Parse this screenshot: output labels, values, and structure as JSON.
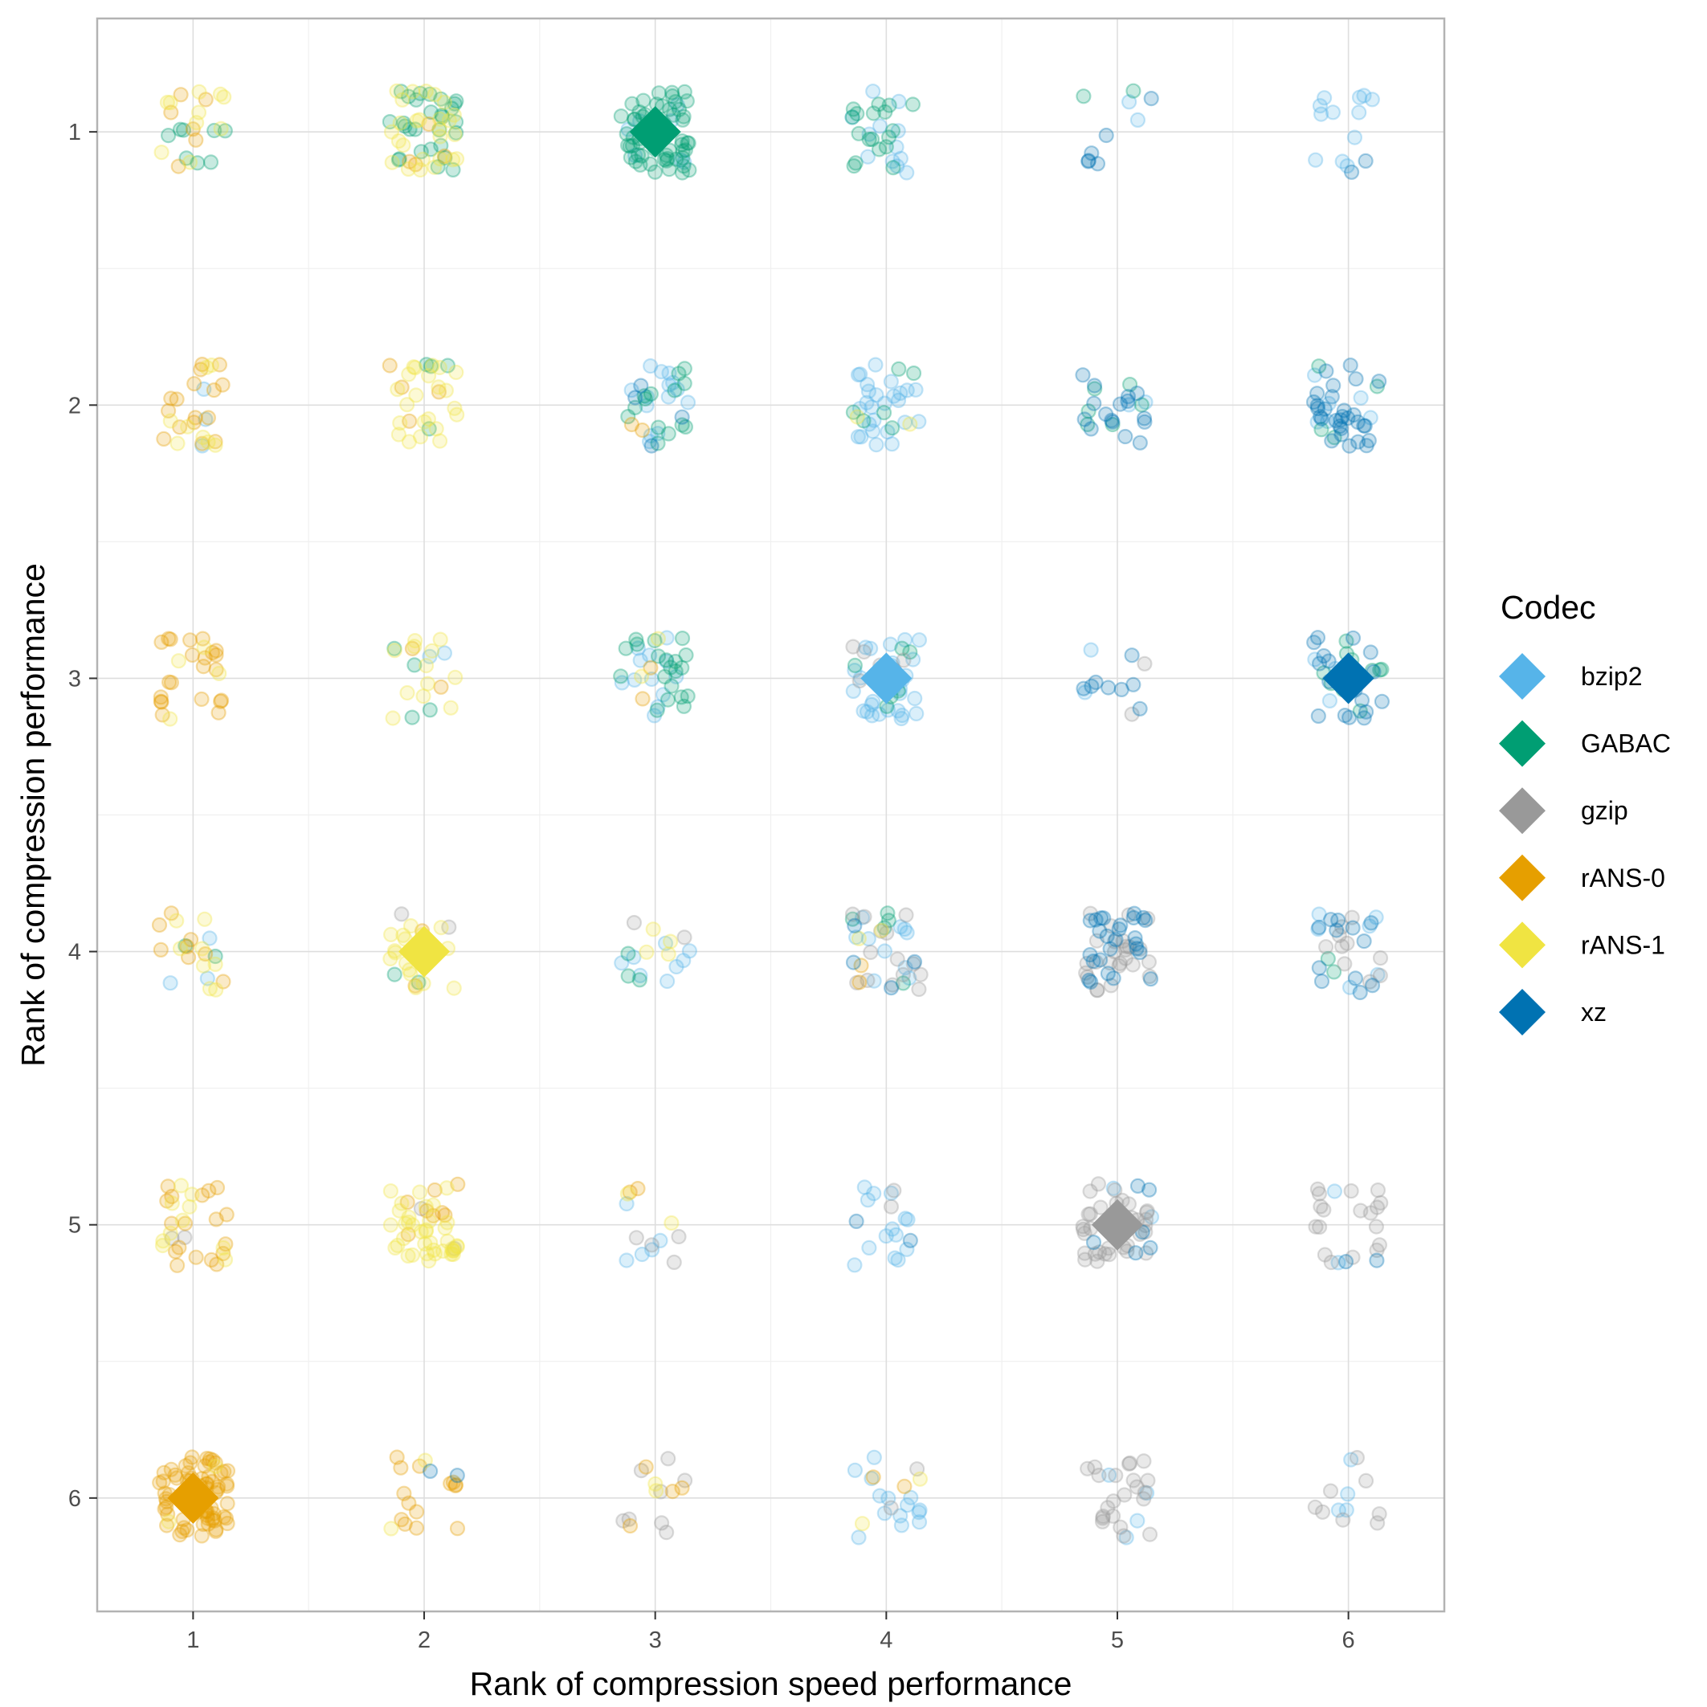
{
  "chart_data": {
    "type": "scatter",
    "title": "",
    "xlabel": "Rank of compression speed performance",
    "ylabel": "Rank of compression performance",
    "xlim": [
      0.585,
      6.415
    ],
    "ylim": [
      0.585,
      6.415
    ],
    "y_reversed": true,
    "x_ticks": [
      "1",
      "2",
      "3",
      "4",
      "5",
      "6"
    ],
    "y_ticks": [
      "1",
      "2",
      "3",
      "4",
      "5",
      "6"
    ],
    "grid": true,
    "jitter_width": 0.15,
    "point_alpha": 0.22,
    "legend": {
      "title": "Codec",
      "position": "right"
    },
    "series": [
      {
        "name": "bzip2",
        "color": "#56B4E9",
        "median": [
          4,
          3
        ],
        "cells": [
          [
            1,
            2,
            3
          ],
          [
            1,
            4,
            3
          ],
          [
            2,
            3,
            2
          ],
          [
            3,
            1,
            8
          ],
          [
            3,
            2,
            14
          ],
          [
            3,
            3,
            12
          ],
          [
            3,
            4,
            8
          ],
          [
            3,
            5,
            5
          ],
          [
            4,
            1,
            12
          ],
          [
            4,
            2,
            26
          ],
          [
            4,
            3,
            32
          ],
          [
            4,
            4,
            10
          ],
          [
            4,
            5,
            14
          ],
          [
            4,
            6,
            14
          ],
          [
            5,
            1,
            2
          ],
          [
            5,
            2,
            2
          ],
          [
            5,
            3,
            2
          ],
          [
            5,
            5,
            2
          ],
          [
            5,
            6,
            4
          ],
          [
            6,
            1,
            12
          ],
          [
            6,
            2,
            6
          ],
          [
            6,
            3,
            4
          ],
          [
            6,
            4,
            6
          ],
          [
            6,
            5,
            2
          ],
          [
            6,
            6,
            4
          ]
        ]
      },
      {
        "name": "GABAC",
        "color": "#009E73",
        "median": [
          3,
          1
        ],
        "cells": [
          [
            1,
            1,
            8
          ],
          [
            1,
            4,
            2
          ],
          [
            2,
            1,
            28
          ],
          [
            2,
            2,
            4
          ],
          [
            2,
            3,
            4
          ],
          [
            2,
            4,
            2
          ],
          [
            3,
            1,
            62
          ],
          [
            3,
            2,
            14
          ],
          [
            3,
            3,
            20
          ],
          [
            3,
            4,
            3
          ],
          [
            4,
            1,
            18
          ],
          [
            4,
            2,
            6
          ],
          [
            4,
            3,
            6
          ],
          [
            4,
            4,
            5
          ],
          [
            5,
            1,
            2
          ],
          [
            5,
            2,
            6
          ],
          [
            6,
            2,
            4
          ],
          [
            6,
            3,
            10
          ],
          [
            6,
            4,
            2
          ]
        ]
      },
      {
        "name": "gzip",
        "color": "#999999",
        "median": [
          5,
          5
        ],
        "cells": [
          [
            1,
            5,
            2
          ],
          [
            2,
            4,
            2
          ],
          [
            2,
            5,
            2
          ],
          [
            3,
            4,
            2
          ],
          [
            3,
            5,
            4
          ],
          [
            3,
            6,
            8
          ],
          [
            4,
            3,
            6
          ],
          [
            4,
            4,
            14
          ],
          [
            4,
            5,
            2
          ],
          [
            4,
            6,
            2
          ],
          [
            5,
            3,
            2
          ],
          [
            5,
            4,
            26
          ],
          [
            5,
            5,
            40
          ],
          [
            5,
            6,
            22
          ],
          [
            6,
            4,
            10
          ],
          [
            6,
            5,
            18
          ],
          [
            6,
            6,
            8
          ]
        ]
      },
      {
        "name": "rANS-0",
        "color": "#E69F00",
        "median": [
          1,
          6
        ],
        "cells": [
          [
            1,
            1,
            6
          ],
          [
            1,
            2,
            16
          ],
          [
            1,
            3,
            22
          ],
          [
            1,
            4,
            8
          ],
          [
            1,
            5,
            18
          ],
          [
            1,
            6,
            75
          ],
          [
            2,
            1,
            4
          ],
          [
            2,
            2,
            4
          ],
          [
            2,
            3,
            2
          ],
          [
            2,
            4,
            2
          ],
          [
            2,
            5,
            8
          ],
          [
            2,
            6,
            14
          ],
          [
            3,
            2,
            2
          ],
          [
            3,
            3,
            2
          ],
          [
            3,
            5,
            2
          ],
          [
            3,
            6,
            4
          ],
          [
            4,
            4,
            2
          ],
          [
            4,
            6,
            2
          ]
        ]
      },
      {
        "name": "rANS-1",
        "color": "#F0E442",
        "median": [
          2,
          4
        ],
        "cells": [
          [
            1,
            1,
            10
          ],
          [
            1,
            2,
            8
          ],
          [
            1,
            3,
            4
          ],
          [
            1,
            4,
            8
          ],
          [
            1,
            5,
            10
          ],
          [
            1,
            6,
            2
          ],
          [
            2,
            1,
            26
          ],
          [
            2,
            2,
            22
          ],
          [
            2,
            3,
            12
          ],
          [
            2,
            4,
            18
          ],
          [
            2,
            5,
            38
          ],
          [
            2,
            6,
            2
          ],
          [
            3,
            3,
            2
          ],
          [
            3,
            4,
            4
          ],
          [
            3,
            5,
            2
          ],
          [
            3,
            6,
            2
          ],
          [
            4,
            2,
            2
          ],
          [
            4,
            4,
            2
          ],
          [
            4,
            6,
            2
          ]
        ]
      },
      {
        "name": "xz",
        "color": "#0072B2",
        "median": [
          6,
          3
        ],
        "cells": [
          [
            2,
            6,
            2
          ],
          [
            3,
            2,
            4
          ],
          [
            4,
            4,
            4
          ],
          [
            4,
            5,
            2
          ],
          [
            5,
            1,
            6
          ],
          [
            5,
            2,
            16
          ],
          [
            5,
            3,
            8
          ],
          [
            5,
            4,
            26
          ],
          [
            5,
            5,
            6
          ],
          [
            6,
            1,
            2
          ],
          [
            6,
            2,
            30
          ],
          [
            6,
            3,
            18
          ],
          [
            6,
            4,
            12
          ],
          [
            6,
            5,
            2
          ]
        ]
      }
    ]
  }
}
